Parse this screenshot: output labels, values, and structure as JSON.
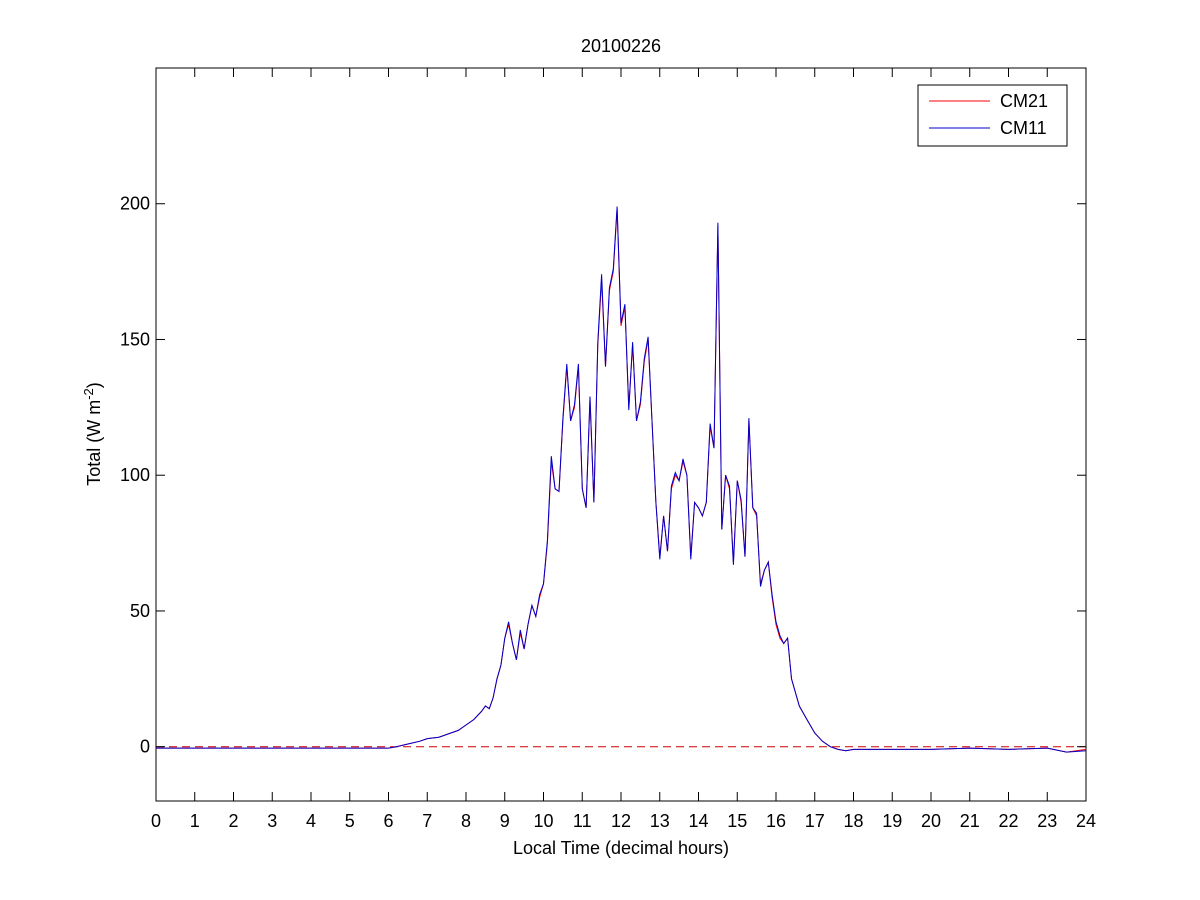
{
  "chart_data": {
    "type": "line",
    "title": "20100226",
    "xlabel": "Local Time (decimal hours)",
    "ylabel": {
      "main": "Total (W m",
      "superscript": "-2",
      "close": ")"
    },
    "xlim": [
      0,
      24
    ],
    "ylim": [
      -20,
      250
    ],
    "xticks": [
      0,
      1,
      2,
      3,
      4,
      5,
      6,
      7,
      8,
      9,
      10,
      11,
      12,
      13,
      14,
      15,
      16,
      17,
      18,
      19,
      20,
      21,
      22,
      23,
      24
    ],
    "yticks": [
      0,
      50,
      100,
      150,
      200
    ],
    "grid": false,
    "legend": {
      "position": "top-right",
      "entries": [
        "CM21",
        "CM11"
      ]
    },
    "reference_line": {
      "y": 0,
      "style": "dashed",
      "color": "#cc0000"
    },
    "series": [
      {
        "name": "CM21",
        "color": "#ff0000",
        "x": [
          0,
          1,
          2,
          3,
          4,
          5,
          6,
          6.2,
          6.5,
          6.8,
          7.0,
          7.3,
          7.6,
          7.8,
          8.0,
          8.2,
          8.4,
          8.5,
          8.6,
          8.7,
          8.8,
          8.9,
          9.0,
          9.1,
          9.2,
          9.3,
          9.4,
          9.5,
          9.6,
          9.7,
          9.8,
          9.9,
          10.0,
          10.1,
          10.2,
          10.3,
          10.4,
          10.5,
          10.6,
          10.7,
          10.8,
          10.9,
          11.0,
          11.1,
          11.2,
          11.3,
          11.4,
          11.5,
          11.6,
          11.7,
          11.8,
          11.9,
          12.0,
          12.1,
          12.2,
          12.3,
          12.4,
          12.5,
          12.6,
          12.7,
          12.8,
          12.9,
          13.0,
          13.1,
          13.2,
          13.3,
          13.4,
          13.5,
          13.6,
          13.7,
          13.8,
          13.9,
          14.0,
          14.1,
          14.2,
          14.3,
          14.4,
          14.5,
          14.6,
          14.7,
          14.8,
          14.9,
          15.0,
          15.1,
          15.2,
          15.3,
          15.4,
          15.5,
          15.6,
          15.7,
          15.8,
          15.9,
          16.0,
          16.1,
          16.2,
          16.3,
          16.4,
          16.5,
          16.6,
          16.8,
          17.0,
          17.2,
          17.4,
          17.6,
          17.8,
          18.0,
          18.5,
          19,
          20,
          21,
          22,
          23,
          23.5,
          24
        ],
        "y": [
          -0.5,
          -0.5,
          -0.5,
          -0.5,
          -0.5,
          -0.5,
          -0.5,
          0,
          1,
          2,
          3,
          3.5,
          5,
          6,
          8,
          10,
          13,
          15,
          14,
          18,
          25,
          30,
          40,
          45,
          38,
          32,
          42,
          36,
          45,
          52,
          48,
          55,
          60,
          75,
          105,
          95,
          94,
          120,
          140,
          120,
          125,
          140,
          95,
          88,
          128,
          90,
          148,
          172,
          140,
          168,
          175,
          198,
          155,
          162,
          125,
          148,
          120,
          126,
          142,
          150,
          120,
          90,
          70,
          85,
          72,
          95,
          100,
          98,
          105,
          100,
          70,
          90,
          88,
          85,
          90,
          118,
          110,
          192,
          80,
          100,
          95,
          68,
          98,
          90,
          70,
          120,
          88,
          85,
          60,
          65,
          68,
          55,
          45,
          40,
          38,
          40,
          25,
          20,
          15,
          10,
          5,
          2,
          0,
          -1,
          -1.5,
          -1,
          -1,
          -1,
          -1,
          -0.5,
          -1,
          -0.5,
          -2,
          -1
        ]
      },
      {
        "name": "CM11",
        "color": "#0000cc",
        "x": [
          0,
          1,
          2,
          3,
          4,
          5,
          6,
          6.2,
          6.5,
          6.8,
          7.0,
          7.3,
          7.6,
          7.8,
          8.0,
          8.2,
          8.4,
          8.5,
          8.6,
          8.7,
          8.8,
          8.9,
          9.0,
          9.1,
          9.2,
          9.3,
          9.4,
          9.5,
          9.6,
          9.7,
          9.8,
          9.9,
          10.0,
          10.1,
          10.2,
          10.3,
          10.4,
          10.5,
          10.6,
          10.7,
          10.8,
          10.9,
          11.0,
          11.1,
          11.2,
          11.3,
          11.4,
          11.5,
          11.6,
          11.7,
          11.8,
          11.9,
          12.0,
          12.1,
          12.2,
          12.3,
          12.4,
          12.5,
          12.6,
          12.7,
          12.8,
          12.9,
          13.0,
          13.1,
          13.2,
          13.3,
          13.4,
          13.5,
          13.6,
          13.7,
          13.8,
          13.9,
          14.0,
          14.1,
          14.2,
          14.3,
          14.4,
          14.5,
          14.6,
          14.7,
          14.8,
          14.9,
          15.0,
          15.1,
          15.2,
          15.3,
          15.4,
          15.5,
          15.6,
          15.7,
          15.8,
          15.9,
          16.0,
          16.1,
          16.2,
          16.3,
          16.4,
          16.5,
          16.6,
          16.8,
          17.0,
          17.2,
          17.4,
          17.6,
          17.8,
          18.0,
          18.5,
          19,
          20,
          21,
          22,
          23,
          23.5,
          24
        ],
        "y": [
          -0.5,
          -0.5,
          -0.5,
          -0.5,
          -0.5,
          -0.5,
          -0.5,
          0,
          1,
          2,
          3,
          3.5,
          5,
          6,
          8,
          10,
          13,
          15,
          14,
          18,
          25,
          30,
          40,
          46,
          38,
          32,
          43,
          36,
          45,
          52,
          48,
          56,
          60,
          76,
          107,
          95,
          94,
          121,
          141,
          120,
          126,
          141,
          95,
          88,
          129,
          90,
          149,
          174,
          140,
          169,
          176,
          199,
          156,
          163,
          124,
          149,
          120,
          127,
          143,
          151,
          120,
          90,
          69,
          85,
          72,
          96,
          101,
          98,
          106,
          100,
          69,
          90,
          88,
          85,
          90,
          119,
          110,
          193,
          80,
          100,
          96,
          67,
          98,
          91,
          70,
          121,
          88,
          86,
          59,
          65,
          68,
          56,
          46,
          41,
          38,
          40,
          25,
          20,
          15,
          10,
          5,
          2,
          0,
          -1,
          -1.5,
          -1,
          -1,
          -1,
          -1,
          -0.5,
          -1,
          -0.5,
          -2,
          -1.5
        ]
      }
    ]
  }
}
